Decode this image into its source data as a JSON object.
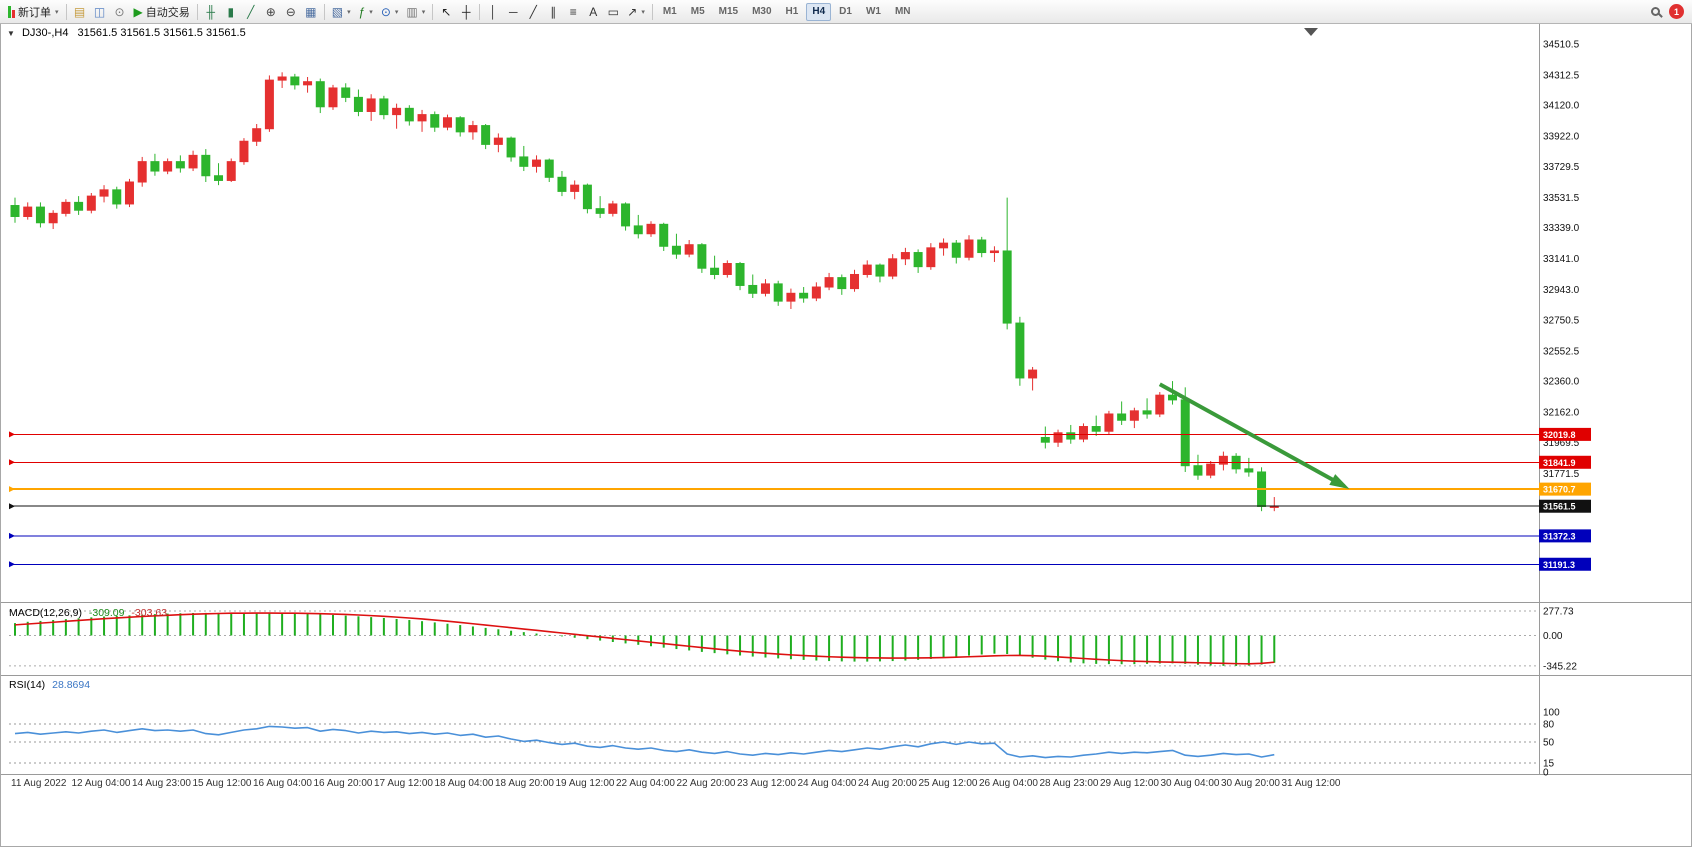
{
  "toolbar": {
    "timeframes": [
      "M1",
      "M5",
      "M15",
      "M30",
      "H1",
      "H4",
      "D1",
      "W1",
      "MN"
    ],
    "active_timeframe": "H4",
    "items": [
      {
        "type": "button",
        "name": "new-order-button",
        "icon": "candles-icon",
        "label": "新订单",
        "caret": true
      },
      {
        "type": "sep"
      },
      {
        "type": "icon",
        "name": "market-watch-icon",
        "glyph": "▤",
        "color": "#c59a3c"
      },
      {
        "type": "icon",
        "name": "data-window-icon",
        "glyph": "◫",
        "color": "#5b84c4"
      },
      {
        "type": "icon",
        "name": "community-icon",
        "glyph": "⊙",
        "color": "#7a7a7a"
      },
      {
        "type": "button",
        "name": "auto-trading-button",
        "icon": "play-icon",
        "label": "自动交易"
      },
      {
        "type": "sep"
      },
      {
        "type": "icon",
        "name": "bar-chart-icon",
        "glyph": "╫",
        "color": "#2a7a4a"
      },
      {
        "type": "icon",
        "name": "candlestick-chart-icon",
        "glyph": "▮",
        "color": "#2a7a4a"
      },
      {
        "type": "icon",
        "name": "line-chart-icon",
        "glyph": "╱",
        "color": "#2a7a4a"
      },
      {
        "type": "icon",
        "name": "zoom-in-icon",
        "glyph": "⊕",
        "color": "#444444"
      },
      {
        "type": "icon",
        "name": "zoom-out-icon",
        "glyph": "⊖",
        "color": "#444444"
      },
      {
        "type": "icon",
        "name": "tile-windows-icon",
        "glyph": "▦",
        "color": "#4a6da0"
      },
      {
        "type": "sep"
      },
      {
        "type": "icon",
        "name": "new-chart-icon",
        "glyph": "▧",
        "color": "#4a6da0",
        "caret": true
      },
      {
        "type": "icon",
        "name": "indicators-icon",
        "glyph": "ƒ",
        "color": "#207a20",
        "caret": true
      },
      {
        "type": "icon",
        "name": "clock-icon",
        "glyph": "⊙",
        "color": "#2a62b8",
        "caret": true
      },
      {
        "type": "icon",
        "name": "templates-icon",
        "glyph": "▥",
        "color": "#777777",
        "caret": true
      },
      {
        "type": "sep"
      },
      {
        "type": "icon",
        "name": "cursor-icon",
        "glyph": "↖",
        "color": "#222222"
      },
      {
        "type": "icon",
        "name": "crosshair-icon",
        "glyph": "┼",
        "color": "#222222"
      },
      {
        "type": "sep"
      },
      {
        "type": "icon",
        "name": "vertical-line-icon",
        "glyph": "│",
        "color": "#333333"
      },
      {
        "type": "icon",
        "name": "horizontal-line-icon",
        "glyph": "─",
        "color": "#333333"
      },
      {
        "type": "icon",
        "name": "trendline-icon",
        "glyph": "╱",
        "color": "#333333"
      },
      {
        "type": "icon",
        "name": "channel-icon",
        "glyph": "∥",
        "color": "#333333"
      },
      {
        "type": "icon",
        "name": "fibonacci-icon",
        "glyph": "≡",
        "color": "#333333"
      },
      {
        "type": "icon",
        "name": "text-icon",
        "glyph": "A",
        "color": "#333333"
      },
      {
        "type": "icon",
        "name": "label-icon",
        "glyph": "▭",
        "color": "#333333"
      },
      {
        "type": "icon",
        "name": "arrows-icon",
        "glyph": "↗",
        "color": "#333333",
        "caret": true
      },
      {
        "type": "sep"
      },
      {
        "type": "timeframes"
      },
      {
        "type": "spacer"
      },
      {
        "type": "icon",
        "name": "search-button",
        "glyph": "search"
      },
      {
        "type": "badge",
        "name": "notification-badge",
        "label": "1"
      }
    ]
  },
  "chart": {
    "symbol_label": "DJ30-,H4",
    "ohlc_label": "31561.5 31561.5 31561.5 31561.5",
    "price_ticks": [
      "34510.5",
      "34312.5",
      "34120.0",
      "33922.0",
      "33729.5",
      "33531.5",
      "33339.0",
      "33141.0",
      "32943.0",
      "32750.5",
      "32552.5",
      "32360.0",
      "32162.0",
      "31969.5",
      "31771.5"
    ],
    "hlines": [
      {
        "label": "32019.8",
        "price": 32019.8,
        "color": "#e00000",
        "width": 1
      },
      {
        "label": "31841.9",
        "price": 31841.9,
        "color": "#e00000",
        "width": 1
      },
      {
        "label": "31670.7",
        "price": 31670.7,
        "color": "#ffa500",
        "width": 2
      },
      {
        "label": "31561.5",
        "price": 31561.5,
        "color": "#111111",
        "width": 1
      },
      {
        "label": "31372.3",
        "price": 31372.3,
        "color": "#0000bb",
        "width": 1
      },
      {
        "label": "31191.3",
        "price": 31191.3,
        "color": "#0000bb",
        "width": 1
      }
    ],
    "time_ticks": [
      "11 Aug 2022",
      "12 Aug 04:00",
      "14 Aug 23:00",
      "15 Aug 12:00",
      "16 Aug 04:00",
      "16 Aug 20:00",
      "17 Aug 12:00",
      "18 Aug 04:00",
      "18 Aug 20:00",
      "19 Aug 12:00",
      "22 Aug 04:00",
      "22 Aug 20:00",
      "23 Aug 12:00",
      "24 Aug 04:00",
      "24 Aug 20:00",
      "25 Aug 12:00",
      "26 Aug 04:00",
      "28 Aug 23:00",
      "29 Aug 12:00",
      "30 Aug 04:00",
      "30 Aug 20:00",
      "31 Aug 12:00"
    ]
  },
  "macd": {
    "title": "MACD(12,26,9)",
    "main_value": "-309.09",
    "signal_value": "-303.63",
    "axis_ticks": [
      "277.73",
      "0.00",
      "-345.22"
    ]
  },
  "rsi": {
    "title": "RSI(14)",
    "value": "28.8694",
    "axis_ticks": [
      "100",
      "80",
      "50",
      "15",
      "0"
    ],
    "levels": [
      80,
      50,
      15
    ]
  },
  "chart_data": {
    "type": "candlestick",
    "symbol": "DJ30",
    "timeframe": "H4",
    "up_color": "#e53030",
    "down_color": "#2db52d",
    "candles_ohlc": [
      [
        33480,
        33530,
        33370,
        33410
      ],
      [
        33410,
        33500,
        33390,
        33470
      ],
      [
        33470,
        33500,
        33340,
        33370
      ],
      [
        33370,
        33450,
        33330,
        33430
      ],
      [
        33430,
        33520,
        33410,
        33500
      ],
      [
        33500,
        33540,
        33420,
        33450
      ],
      [
        33450,
        33560,
        33430,
        33540
      ],
      [
        33540,
        33610,
        33500,
        33580
      ],
      [
        33580,
        33600,
        33460,
        33490
      ],
      [
        33490,
        33650,
        33470,
        33630
      ],
      [
        33630,
        33790,
        33600,
        33760
      ],
      [
        33760,
        33810,
        33670,
        33700
      ],
      [
        33700,
        33780,
        33680,
        33760
      ],
      [
        33760,
        33800,
        33690,
        33720
      ],
      [
        33720,
        33830,
        33700,
        33800
      ],
      [
        33800,
        33840,
        33630,
        33670
      ],
      [
        33670,
        33750,
        33610,
        33640
      ],
      [
        33640,
        33780,
        33630,
        33760
      ],
      [
        33760,
        33910,
        33740,
        33890
      ],
      [
        33890,
        34000,
        33860,
        33970
      ],
      [
        33970,
        34310,
        33950,
        34280
      ],
      [
        34280,
        34330,
        34230,
        34300
      ],
      [
        34300,
        34320,
        34220,
        34250
      ],
      [
        34250,
        34300,
        34200,
        34270
      ],
      [
        34270,
        34290,
        34070,
        34110
      ],
      [
        34110,
        34250,
        34090,
        34230
      ],
      [
        34230,
        34260,
        34140,
        34170
      ],
      [
        34170,
        34220,
        34050,
        34080
      ],
      [
        34080,
        34190,
        34020,
        34160
      ],
      [
        34160,
        34180,
        34030,
        34060
      ],
      [
        34060,
        34130,
        33970,
        34100
      ],
      [
        34100,
        34120,
        33990,
        34020
      ],
      [
        34020,
        34090,
        33950,
        34060
      ],
      [
        34060,
        34080,
        33950,
        33980
      ],
      [
        33980,
        34060,
        33960,
        34040
      ],
      [
        34040,
        34050,
        33920,
        33950
      ],
      [
        33950,
        34020,
        33900,
        33990
      ],
      [
        33990,
        34000,
        33840,
        33870
      ],
      [
        33870,
        33940,
        33820,
        33910
      ],
      [
        33910,
        33920,
        33760,
        33790
      ],
      [
        33790,
        33860,
        33700,
        33730
      ],
      [
        33730,
        33800,
        33690,
        33770
      ],
      [
        33770,
        33780,
        33630,
        33660
      ],
      [
        33660,
        33700,
        33540,
        33570
      ],
      [
        33570,
        33640,
        33520,
        33610
      ],
      [
        33610,
        33620,
        33430,
        33460
      ],
      [
        33460,
        33540,
        33400,
        33430
      ],
      [
        33430,
        33510,
        33410,
        33490
      ],
      [
        33490,
        33500,
        33320,
        33350
      ],
      [
        33350,
        33420,
        33270,
        33300
      ],
      [
        33300,
        33380,
        33280,
        33360
      ],
      [
        33360,
        33370,
        33190,
        33220
      ],
      [
        33220,
        33300,
        33140,
        33170
      ],
      [
        33170,
        33260,
        33150,
        33230
      ],
      [
        33230,
        33240,
        33050,
        33080
      ],
      [
        33080,
        33160,
        33010,
        33040
      ],
      [
        33040,
        33130,
        33020,
        33110
      ],
      [
        33110,
        33120,
        32940,
        32970
      ],
      [
        32970,
        33040,
        32890,
        32920
      ],
      [
        32920,
        33010,
        32900,
        32980
      ],
      [
        32980,
        33000,
        32840,
        32870
      ],
      [
        32870,
        32950,
        32820,
        32920
      ],
      [
        32920,
        32960,
        32860,
        32890
      ],
      [
        32890,
        32990,
        32870,
        32960
      ],
      [
        32960,
        33050,
        32940,
        33020
      ],
      [
        33020,
        33040,
        32910,
        32950
      ],
      [
        32950,
        33070,
        32930,
        33040
      ],
      [
        33040,
        33130,
        33020,
        33100
      ],
      [
        33100,
        33110,
        32990,
        33030
      ],
      [
        33030,
        33170,
        33010,
        33140
      ],
      [
        33140,
        33210,
        33100,
        33180
      ],
      [
        33180,
        33200,
        33050,
        33090
      ],
      [
        33090,
        33240,
        33070,
        33210
      ],
      [
        33210,
        33270,
        33160,
        33240
      ],
      [
        33240,
        33260,
        33110,
        33150
      ],
      [
        33150,
        33290,
        33130,
        33260
      ],
      [
        33260,
        33280,
        33150,
        33180
      ],
      [
        33180,
        33220,
        33120,
        33190
      ],
      [
        33190,
        33530,
        32690,
        32730
      ],
      [
        32730,
        32770,
        32330,
        32380
      ],
      [
        32380,
        32450,
        32300,
        32430
      ],
      [
        32000,
        32070,
        31930,
        31970
      ],
      [
        31970,
        32050,
        31940,
        32030
      ],
      [
        32030,
        32080,
        31960,
        31990
      ],
      [
        31990,
        32090,
        31970,
        32070
      ],
      [
        32070,
        32140,
        32010,
        32040
      ],
      [
        32040,
        32170,
        32020,
        32150
      ],
      [
        32150,
        32230,
        32080,
        32110
      ],
      [
        32110,
        32190,
        32060,
        32170
      ],
      [
        32170,
        32250,
        32120,
        32150
      ],
      [
        32150,
        32290,
        32130,
        32270
      ],
      [
        32270,
        32360,
        32210,
        32240
      ],
      [
        32240,
        32320,
        31780,
        31820
      ],
      [
        31820,
        31890,
        31730,
        31760
      ],
      [
        31760,
        31850,
        31740,
        31830
      ],
      [
        31830,
        31910,
        31790,
        31880
      ],
      [
        31880,
        31900,
        31770,
        31800
      ],
      [
        31800,
        31870,
        31750,
        31780
      ],
      [
        31780,
        31810,
        31530,
        31560
      ],
      [
        31560,
        31620,
        31530,
        31561.5
      ]
    ],
    "macd_hist": [
      140,
      155,
      165,
      175,
      185,
      195,
      205,
      215,
      222,
      228,
      235,
      242,
      248,
      252,
      255,
      256,
      256,
      255,
      254,
      253,
      252,
      250,
      247,
      243,
      238,
      232,
      225,
      217,
      208,
      198,
      187,
      175,
      162,
      148,
      133,
      118,
      102,
      86,
      70,
      54,
      38,
      22,
      6,
      -10,
      -26,
      -42,
      -58,
      -74,
      -90,
      -106,
      -122,
      -138,
      -154,
      -170,
      -186,
      -200,
      -214,
      -227,
      -239,
      -250,
      -260,
      -269,
      -277,
      -284,
      -290,
      -294,
      -296,
      -296,
      -294,
      -290,
      -284,
      -276,
      -266,
      -254,
      -241,
      -228,
      -216,
      -206,
      -210,
      -228,
      -252,
      -274,
      -292,
      -306,
      -316,
      -322,
      -325,
      -326,
      -325,
      -322,
      -318,
      -316,
      -322,
      -332,
      -340,
      -344,
      -345.22,
      -342,
      -330,
      -309.09
    ],
    "macd_signal": [
      120,
      130,
      140,
      150,
      160,
      170,
      180,
      190,
      199,
      207,
      215,
      222,
      229,
      235,
      241,
      246,
      249,
      252,
      253,
      254,
      254,
      253,
      252,
      250,
      247,
      243,
      238,
      232,
      225,
      217,
      208,
      198,
      187,
      175,
      162,
      148,
      133,
      118,
      103,
      88,
      73,
      58,
      43,
      28,
      13,
      -2,
      -17,
      -32,
      -47,
      -62,
      -77,
      -92,
      -107,
      -122,
      -137,
      -151,
      -165,
      -178,
      -190,
      -201,
      -211,
      -220,
      -228,
      -235,
      -241,
      -246,
      -250,
      -253,
      -255,
      -256,
      -256,
      -255,
      -253,
      -250,
      -246,
      -241,
      -236,
      -231,
      -227,
      -226,
      -229,
      -235,
      -243,
      -252,
      -261,
      -270,
      -278,
      -285,
      -291,
      -296,
      -300,
      -303,
      -306,
      -309,
      -313,
      -316,
      -319,
      -321,
      -315,
      -303.63
    ],
    "rsi_values": [
      64,
      66,
      63,
      65,
      67,
      65,
      68,
      70,
      66,
      69,
      72,
      69,
      70,
      68,
      70,
      64,
      62,
      66,
      70,
      72,
      76,
      75,
      73,
      74,
      68,
      71,
      69,
      65,
      68,
      66,
      67,
      64,
      66,
      63,
      65,
      61,
      63,
      58,
      60,
      55,
      51,
      53,
      49,
      46,
      48,
      43,
      41,
      44,
      40,
      38,
      40,
      36,
      34,
      37,
      33,
      31,
      34,
      30,
      28,
      31,
      29,
      32,
      30,
      33,
      36,
      34,
      37,
      40,
      38,
      42,
      45,
      42,
      47,
      50,
      46,
      50,
      47,
      48,
      30,
      25,
      27,
      24,
      26,
      25,
      28,
      30,
      33,
      31,
      33,
      32,
      34,
      36,
      28,
      26,
      28,
      31,
      29,
      30,
      25,
      28.87
    ],
    "trend_arrow": {
      "color": "#3a9a3a",
      "from_index": 90,
      "from_price": 32340,
      "to_index": 104.5,
      "to_price": 31690
    }
  }
}
